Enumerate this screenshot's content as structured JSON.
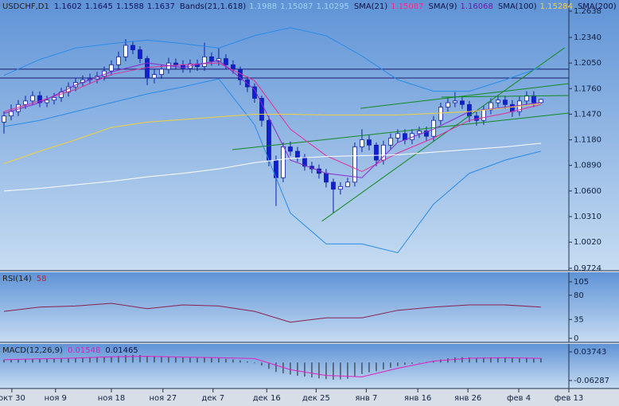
{
  "chart_data": [
    {
      "type": "candlestick",
      "title": "USDCHF,D1",
      "open": [
        1.138,
        1.145,
        1.15,
        1.158,
        1.162,
        1.168,
        1.16,
        1.163,
        1.166,
        1.172,
        1.178,
        1.183,
        1.186,
        1.187,
        1.19,
        1.196,
        1.203,
        1.212,
        1.225,
        1.22,
        1.21,
        1.188,
        1.192,
        1.198,
        1.205,
        1.203,
        1.199,
        1.204,
        1.201,
        1.212,
        1.207,
        1.21,
        1.203,
        1.198,
        1.186,
        1.178,
        1.165,
        1.14,
        1.095,
        1.075,
        1.11,
        1.105,
        1.098,
        1.088,
        1.085,
        1.08,
        1.07,
        1.062,
        1.065,
        1.07,
        1.11,
        1.118,
        1.112,
        1.095,
        1.112,
        1.12,
        1.125,
        1.118,
        1.125,
        1.128,
        1.122,
        1.14,
        1.155,
        1.16,
        1.162,
        1.158,
        1.145,
        1.14,
        1.152,
        1.16,
        1.163,
        1.158,
        1.15,
        1.162,
        1.168,
        1.1602
      ],
      "high": [
        1.15,
        1.158,
        1.163,
        1.168,
        1.173,
        1.173,
        1.168,
        1.171,
        1.177,
        1.183,
        1.188,
        1.191,
        1.193,
        1.195,
        1.201,
        1.208,
        1.218,
        1.232,
        1.23,
        1.224,
        1.213,
        1.198,
        1.203,
        1.211,
        1.21,
        1.208,
        1.209,
        1.209,
        1.228,
        1.217,
        1.222,
        1.215,
        1.208,
        1.201,
        1.19,
        1.182,
        1.168,
        1.145,
        1.1,
        1.115,
        1.116,
        1.11,
        1.102,
        1.093,
        1.09,
        1.085,
        1.074,
        1.07,
        1.075,
        1.115,
        1.13,
        1.123,
        1.115,
        1.117,
        1.125,
        1.13,
        1.13,
        1.13,
        1.133,
        1.133,
        1.145,
        1.16,
        1.166,
        1.172,
        1.167,
        1.162,
        1.15,
        1.157,
        1.165,
        1.168,
        1.168,
        1.163,
        1.167,
        1.173,
        1.173,
        1.1645
      ],
      "low": [
        1.125,
        1.14,
        1.145,
        1.153,
        1.157,
        1.155,
        1.155,
        1.158,
        1.161,
        1.167,
        1.173,
        1.178,
        1.181,
        1.182,
        1.185,
        1.191,
        1.198,
        1.207,
        1.215,
        1.205,
        1.18,
        1.182,
        1.187,
        1.193,
        1.198,
        1.194,
        1.194,
        1.196,
        1.196,
        1.202,
        1.202,
        1.198,
        1.193,
        1.18,
        1.172,
        1.16,
        1.133,
        1.088,
        1.043,
        1.07,
        1.1,
        1.093,
        1.083,
        1.08,
        1.074,
        1.064,
        1.035,
        1.056,
        1.065,
        1.065,
        1.104,
        1.106,
        1.088,
        1.09,
        1.107,
        1.115,
        1.113,
        1.113,
        1.12,
        1.117,
        1.117,
        1.135,
        1.15,
        1.155,
        1.153,
        1.138,
        1.134,
        1.135,
        1.147,
        1.155,
        1.153,
        1.144,
        1.145,
        1.157,
        1.155,
        1.1588
      ],
      "close": [
        1.145,
        1.15,
        1.158,
        1.162,
        1.168,
        1.16,
        1.163,
        1.166,
        1.172,
        1.178,
        1.183,
        1.186,
        1.187,
        1.19,
        1.196,
        1.203,
        1.212,
        1.225,
        1.22,
        1.21,
        1.188,
        1.192,
        1.198,
        1.205,
        1.203,
        1.199,
        1.204,
        1.201,
        1.212,
        1.207,
        1.21,
        1.203,
        1.198,
        1.186,
        1.178,
        1.165,
        1.14,
        1.095,
        1.075,
        1.11,
        1.105,
        1.098,
        1.088,
        1.085,
        1.08,
        1.07,
        1.062,
        1.065,
        1.07,
        1.11,
        1.118,
        1.112,
        1.095,
        1.112,
        1.12,
        1.125,
        1.118,
        1.125,
        1.128,
        1.122,
        1.14,
        1.155,
        1.16,
        1.162,
        1.158,
        1.145,
        1.14,
        1.152,
        1.16,
        1.163,
        1.158,
        1.15,
        1.162,
        1.168,
        1.16,
        1.1637
      ],
      "bull_color": "#ffffff",
      "bear_color": "#1020d0",
      "wick_color": "#1020a0",
      "legend": [
        {
          "label": "Bands(21,1.618)",
          "values": [
            1.1988,
            1.15087,
            1.10295
          ],
          "color": "#9fd4ff"
        },
        {
          "label": "SMA(21)",
          "values": [
            1.15087
          ],
          "color": "#ff2a8a"
        },
        {
          "label": "SMA(9)",
          "values": [
            1.16068
          ],
          "color": "#6a1aa8"
        },
        {
          "label": "SMA(100)",
          "values": [
            1.15284
          ],
          "color": "#f0d040"
        },
        {
          "label": "SMA(200)",
          "values": [],
          "color": "#ffffff"
        }
      ],
      "sample_x": [
        0,
        5,
        10,
        15,
        20,
        25,
        30,
        35,
        40,
        45,
        50,
        55,
        60,
        65,
        70,
        75
      ],
      "series": [
        {
          "color": "#2a8ce8",
          "values": [
            1.191,
            1.209,
            1.222,
            1.227,
            1.231,
            1.227,
            1.222,
            1.236,
            1.245,
            1.236,
            1.213,
            1.186,
            1.173,
            1.173,
            1.186,
            1.2
          ]
        },
        {
          "color": "#2a8ce8",
          "values": [
            1.133,
            1.14,
            1.15,
            1.16,
            1.17,
            1.178,
            1.187,
            1.135,
            1.035,
            1.0,
            1.0,
            0.99,
            1.045,
            1.08,
            1.095,
            1.105
          ]
        },
        {
          "color": "#e0309a",
          "values": [
            1.15,
            1.162,
            1.175,
            1.192,
            1.2,
            1.203,
            1.205,
            1.185,
            1.13,
            1.1,
            1.082,
            1.103,
            1.12,
            1.14,
            1.148,
            1.158
          ]
        },
        {
          "color": "#8a2ad0",
          "values": [
            1.148,
            1.16,
            1.18,
            1.195,
            1.205,
            1.2,
            1.208,
            1.175,
            1.095,
            1.08,
            1.075,
            1.115,
            1.13,
            1.15,
            1.155,
            1.16
          ]
        },
        {
          "color": "#f0d040",
          "values": [
            1.091,
            1.105,
            1.118,
            1.132,
            1.138,
            1.141,
            1.144,
            1.147,
            1.147,
            1.146,
            1.146,
            1.146,
            1.148,
            1.15,
            1.154,
            1.159
          ]
        },
        {
          "color": "#ffffff",
          "values": [
            1.06,
            1.063,
            1.067,
            1.071,
            1.076,
            1.08,
            1.085,
            1.092,
            1.097,
            1.099,
            1.1,
            1.101,
            1.104,
            1.107,
            1.11,
            1.114
          ]
        }
      ],
      "hlines": [
        1.198,
        1.188
      ],
      "hline_color": "#1a1a70",
      "trendlines": [
        {
          "x": [
            31.9,
            78.9
          ],
          "y": [
            1.1068,
            1.1483
          ]
        },
        {
          "x": [
            49.8,
            78.9
          ],
          "y": [
            1.1537,
            1.1817
          ]
        },
        {
          "x": [
            44.4,
            78.3
          ],
          "y": [
            1.0257,
            1.2223
          ]
        },
        {
          "x": [
            61.1,
            78.9
          ],
          "y": [
            1.1664,
            1.1682
          ]
        }
      ],
      "trend_color": "#108a20",
      "xlim": [
        -0.556,
        78.9
      ],
      "xticks": [
        {
          "value": 1.1,
          "label": "окт 30"
        },
        {
          "value": 7.2,
          "label": "ноя 9"
        },
        {
          "value": 15,
          "label": "ноя 18"
        },
        {
          "value": 22.2,
          "label": "ноя 27"
        },
        {
          "value": 29.2,
          "label": "дек 7"
        },
        {
          "value": 36.7,
          "label": "дек 16"
        },
        {
          "value": 43.6,
          "label": "дек 25"
        },
        {
          "value": 50.6,
          "label": "янв 7"
        },
        {
          "value": 57.8,
          "label": "янв 16"
        },
        {
          "value": 64.8,
          "label": "янв 26"
        },
        {
          "value": 71.9,
          "label": "фев 4"
        },
        {
          "value": 78.9,
          "label": "фев 13"
        }
      ],
      "ylim": [
        0.9697,
        1.2764
      ],
      "yticks": [
        1.2638,
        {
          "value": 1.234,
          "label": "1.2340"
        },
        {
          "value": 1.205,
          "label": "1.2050"
        },
        {
          "value": 1.176,
          "label": "1.1760"
        },
        {
          "value": 1.147,
          "label": "1.1470"
        },
        {
          "value": 1.118,
          "label": "1.1180"
        },
        {
          "value": 1.089,
          "label": "1.0890"
        },
        {
          "value": 1.06,
          "label": "1.0600"
        },
        {
          "value": 1.031,
          "label": "1.0310"
        },
        {
          "value": 1.002,
          "label": "1.0020"
        },
        0.9724
      ]
    },
    {
      "type": "line",
      "title": "RSI(14)",
      "xlim": [
        -0.556,
        78.9
      ],
      "sample_x": [
        0,
        5,
        10,
        15,
        20,
        25,
        30,
        35,
        40,
        45,
        50,
        55,
        60,
        65,
        70,
        75
      ],
      "series": [
        {
          "color": "#8a2050",
          "values": [
            50,
            58,
            60,
            65,
            55,
            62,
            60,
            50,
            30,
            38,
            38,
            52,
            58,
            62,
            62,
            58
          ]
        }
      ],
      "ylim": [
        -7.4,
        122.7
      ],
      "yticks": [
        105,
        80,
        35,
        0
      ]
    },
    {
      "type": "bar",
      "title": "MACD(12,26,9)",
      "xlim": [
        -0.556,
        78.9
      ],
      "color": "#202020",
      "values": [
        0.01,
        0.011,
        0.012,
        0.013,
        0.014,
        0.013,
        0.013,
        0.014,
        0.015,
        0.016,
        0.017,
        0.018,
        0.018,
        0.019,
        0.02,
        0.021,
        0.023,
        0.026,
        0.027,
        0.026,
        0.022,
        0.021,
        0.02,
        0.02,
        0.019,
        0.018,
        0.017,
        0.016,
        0.017,
        0.016,
        0.015,
        0.013,
        0.011,
        0.008,
        0.004,
        -0.002,
        -0.01,
        -0.022,
        -0.033,
        -0.038,
        -0.042,
        -0.046,
        -0.049,
        -0.052,
        -0.055,
        -0.058,
        -0.06,
        -0.059,
        -0.057,
        -0.048,
        -0.04,
        -0.034,
        -0.03,
        -0.024,
        -0.018,
        -0.012,
        -0.008,
        -0.004,
        -0.001,
        0.002,
        0.006,
        0.011,
        0.015,
        0.018,
        0.019,
        0.018,
        0.017,
        0.017,
        0.018,
        0.018,
        0.018,
        0.016,
        0.016,
        0.017,
        0.016,
        0.01548
      ],
      "sample_x": [
        0,
        5,
        10,
        15,
        20,
        25,
        30,
        35,
        40,
        45,
        50,
        55,
        60,
        65,
        70,
        75
      ],
      "series": [
        {
          "color": "#e020c0",
          "values": [
            0.01,
            0.013,
            0.016,
            0.02,
            0.022,
            0.019,
            0.017,
            0.014,
            -0.025,
            -0.045,
            -0.05,
            -0.02,
            0.005,
            0.015,
            0.017,
            0.01465
          ]
        }
      ],
      "ylim": [
        -0.09073,
        0.06529
      ],
      "yticks": [
        0.03743,
        -0.06287
      ]
    }
  ]
}
